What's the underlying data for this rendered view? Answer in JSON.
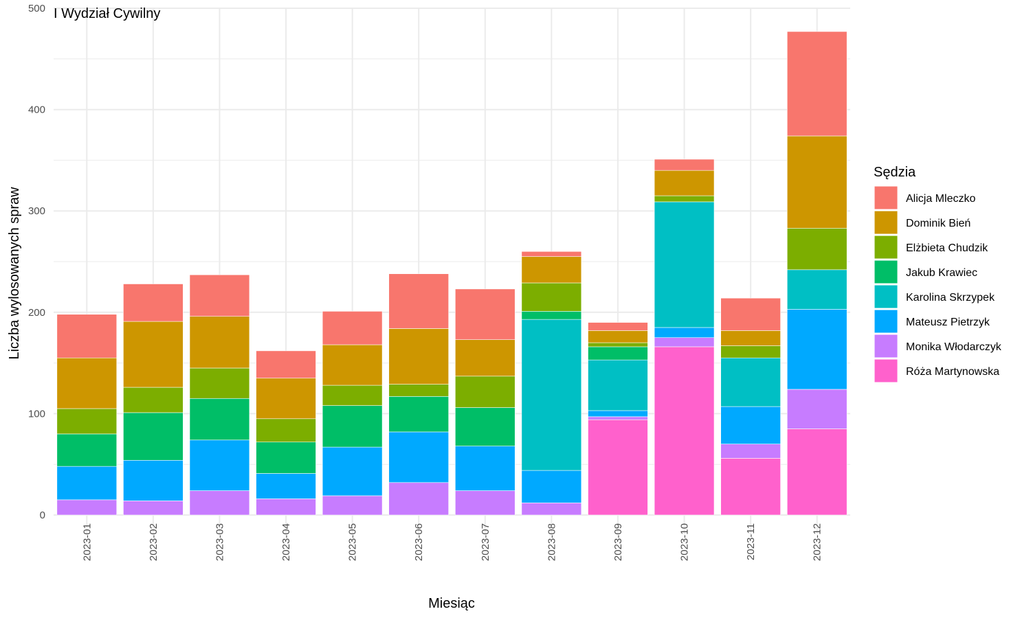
{
  "chart_data": {
    "type": "bar",
    "stacked": true,
    "title": "I Wydział Cywilny",
    "xlabel": "Miesiąc",
    "ylabel": "Liczba wylosowanych spraw",
    "ylim": [
      0,
      500
    ],
    "yticks": [
      0,
      100,
      200,
      300,
      400,
      500
    ],
    "grid": true,
    "legend_title": "Sędzia",
    "legend_position": "right",
    "categories": [
      "2023-01",
      "2023-02",
      "2023-03",
      "2023-04",
      "2023-05",
      "2023-06",
      "2023-07",
      "2023-08",
      "2023-09",
      "2023-10",
      "2023-11",
      "2023-12"
    ],
    "series": [
      {
        "name": "Alicja Mleczko",
        "color": "#F8766D",
        "values": [
          43,
          37,
          41,
          27,
          33,
          54,
          50,
          5,
          8,
          11,
          32,
          103
        ]
      },
      {
        "name": "Dominik Bień",
        "color": "#CD9600",
        "values": [
          50,
          65,
          51,
          40,
          40,
          55,
          36,
          26,
          12,
          25,
          15,
          91
        ]
      },
      {
        "name": "Elżbieta Chudzik",
        "color": "#7CAE00",
        "values": [
          25,
          25,
          30,
          23,
          20,
          12,
          31,
          28,
          4,
          6,
          12,
          41
        ]
      },
      {
        "name": "Jakub Krawiec",
        "color": "#00BE67",
        "values": [
          32,
          47,
          41,
          31,
          41,
          35,
          38,
          8,
          13,
          0,
          0,
          0
        ]
      },
      {
        "name": "Karolina Skrzypek",
        "color": "#00BFC4",
        "values": [
          0,
          0,
          0,
          0,
          0,
          0,
          0,
          149,
          50,
          124,
          48,
          39
        ]
      },
      {
        "name": "Mateusz Pietrzyk",
        "color": "#00A9FF",
        "values": [
          33,
          40,
          50,
          25,
          48,
          50,
          44,
          32,
          6,
          10,
          37,
          79
        ]
      },
      {
        "name": "Monika Włodarczyk",
        "color": "#C77CFF",
        "values": [
          15,
          14,
          24,
          16,
          19,
          32,
          24,
          12,
          3,
          9,
          14,
          39
        ]
      },
      {
        "name": "Róża Martynowska",
        "color": "#FF61CC",
        "values": [
          0,
          0,
          0,
          0,
          0,
          0,
          0,
          0,
          94,
          166,
          56,
          85
        ]
      }
    ]
  }
}
